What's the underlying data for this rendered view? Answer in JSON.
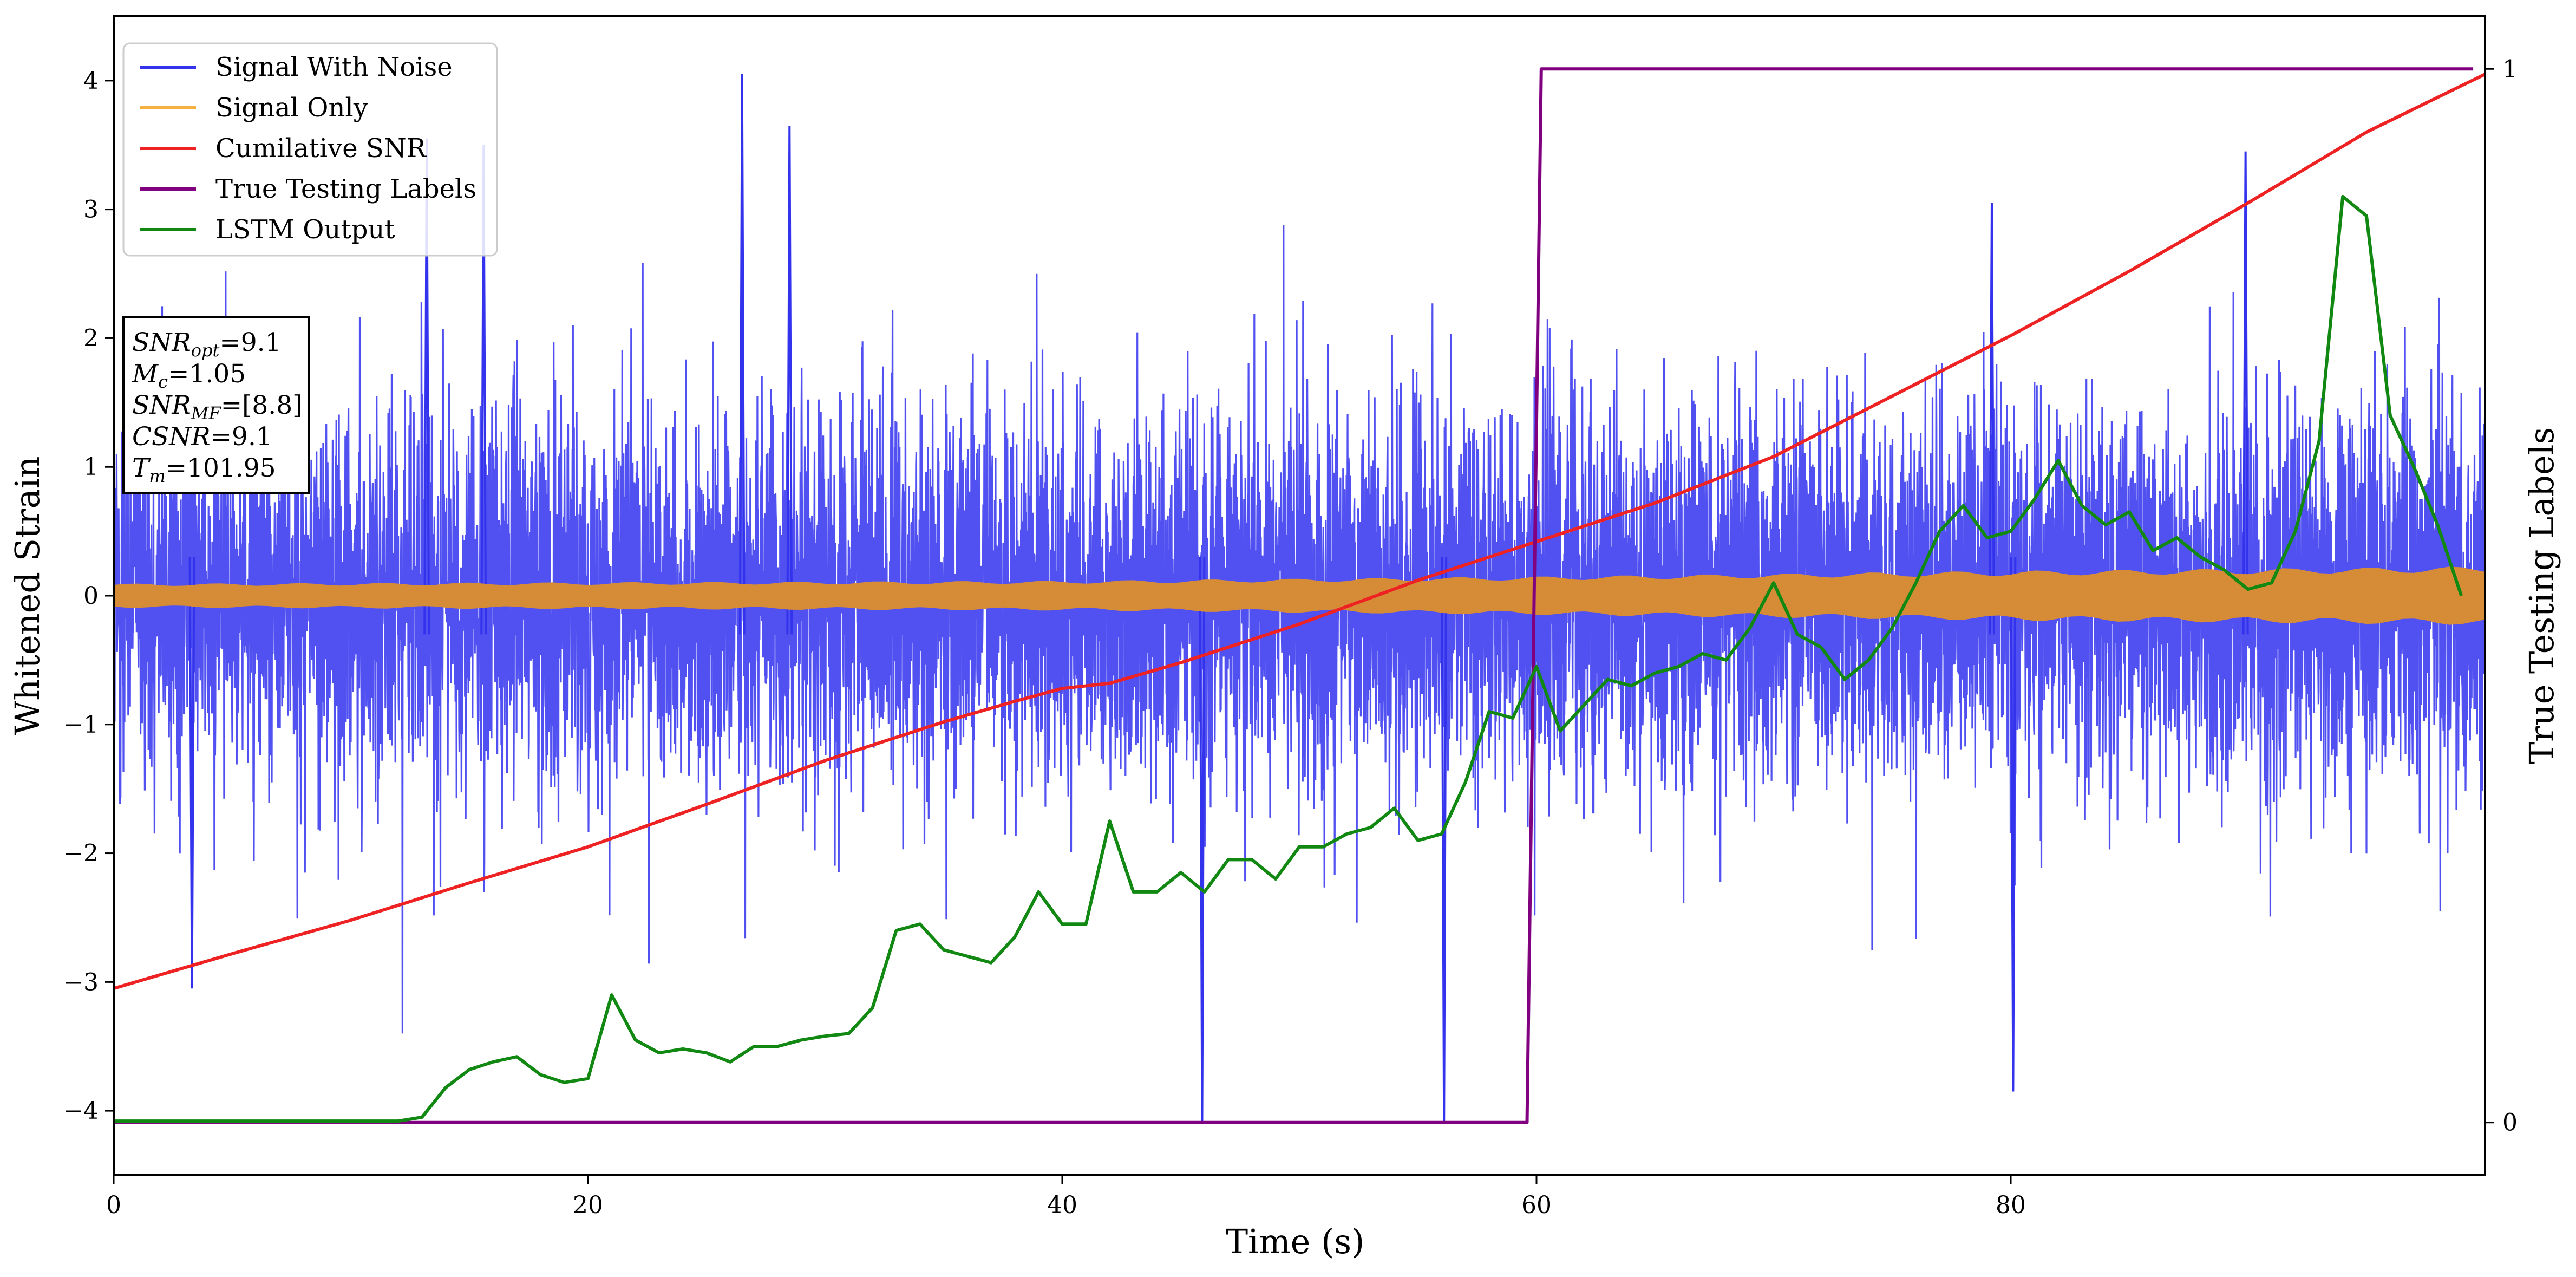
{
  "chart_data": {
    "type": "line",
    "xlabel": "Time (s)",
    "ylabel": "Whitened Strain",
    "y2label": "True Testing Labels",
    "xlim": [
      0,
      100
    ],
    "ylim": [
      -4.5,
      4.5
    ],
    "y2lim": [
      -0.05,
      1.05
    ],
    "xticks": [
      0,
      20,
      40,
      60,
      80
    ],
    "yticks": [
      -4,
      -3,
      -2,
      -1,
      0,
      1,
      2,
      3,
      4
    ],
    "y2ticks": [
      0,
      1
    ],
    "grid": false,
    "legend": {
      "placement": "top-left",
      "entries": [
        {
          "name": "Signal With Noise",
          "color": "#3333ee"
        },
        {
          "name": "Signal Only",
          "color": "#f5b041"
        },
        {
          "name": "Cumilative SNR",
          "color": "#ee2222"
        },
        {
          "name": "True Testing Labels",
          "color": "#800080"
        },
        {
          "name": "LSTM Output",
          "color": "#118811"
        }
      ]
    },
    "annotation": {
      "placement": "left-middle",
      "lines": [
        {
          "base": "SNR",
          "sub": "opt",
          "value": "=9.1"
        },
        {
          "base": "M",
          "sub": "c",
          "value": "=1.05"
        },
        {
          "base": "SNR",
          "sub": "MF",
          "value": "=[8.8]"
        },
        {
          "base": "CSNR",
          "sub": "",
          "value": "=9.1"
        },
        {
          "base": "T",
          "sub": "m",
          "value": "=101.95"
        }
      ]
    },
    "series": [
      {
        "name": "Signal With Noise",
        "axis": "left",
        "color": "#3333ee",
        "style": "dense noise band",
        "typical_range": [
          -1.6,
          1.6
        ],
        "peaks": [
          {
            "x": 3.3,
            "y": -3.05
          },
          {
            "x": 13.2,
            "y": 3.55
          },
          {
            "x": 15.6,
            "y": 3.5
          },
          {
            "x": 26.5,
            "y": 4.05
          },
          {
            "x": 28.5,
            "y": 3.65
          },
          {
            "x": 45.9,
            "y": -4.1
          },
          {
            "x": 56.1,
            "y": -4.1
          },
          {
            "x": 79.2,
            "y": 3.05
          },
          {
            "x": 80.1,
            "y": -3.85
          },
          {
            "x": 89.9,
            "y": 3.45
          }
        ]
      },
      {
        "name": "Signal Only",
        "axis": "left",
        "color": "#d68c36",
        "style": "narrow band",
        "envelope": {
          "x": [
            0,
            20,
            40,
            60,
            80,
            100
          ],
          "amplitude": [
            0.08,
            0.09,
            0.1,
            0.13,
            0.17,
            0.2
          ]
        }
      },
      {
        "name": "Cumilative SNR",
        "axis": "left",
        "color": "#ee2222",
        "x": [
          0,
          5,
          10,
          15,
          20,
          25,
          30,
          35,
          38,
          40,
          42,
          45,
          50,
          55,
          60,
          65,
          70,
          75,
          80,
          85,
          90,
          95,
          100
        ],
        "y": [
          -3.05,
          -2.78,
          -2.52,
          -2.23,
          -1.95,
          -1.62,
          -1.28,
          -0.98,
          -0.82,
          -0.72,
          -0.68,
          -0.52,
          -0.22,
          0.12,
          0.42,
          0.72,
          1.08,
          1.55,
          2.02,
          2.52,
          3.05,
          3.6,
          4.05
        ]
      },
      {
        "name": "True Testing Labels",
        "axis": "right",
        "color": "#800080",
        "x": [
          0,
          59.6,
          60.2,
          99.5
        ],
        "y": [
          0,
          0,
          1,
          1
        ]
      },
      {
        "name": "LSTM Output",
        "axis": "left",
        "color": "#118811",
        "x": [
          0,
          12,
          13,
          14,
          15,
          16,
          17,
          18,
          19,
          20,
          21,
          22,
          23,
          24,
          25,
          26,
          27,
          28,
          29,
          30,
          31,
          32,
          33,
          34,
          35,
          36,
          37,
          38,
          39,
          40,
          41,
          42,
          43,
          44,
          45,
          46,
          47,
          48,
          49,
          50,
          51,
          52,
          53,
          54,
          55,
          56,
          57,
          58,
          59,
          60,
          61,
          62,
          63,
          64,
          65,
          66,
          67,
          68,
          69,
          70,
          71,
          72,
          73,
          74,
          75,
          76,
          77,
          78,
          79,
          80,
          81,
          82,
          83,
          84,
          85,
          86,
          87,
          88,
          89,
          90,
          91,
          92,
          93,
          94,
          95,
          96,
          97,
          98,
          99
        ],
        "y": [
          -4.08,
          -4.08,
          -4.05,
          -3.82,
          -3.68,
          -3.62,
          -3.58,
          -3.72,
          -3.78,
          -3.75,
          -3.1,
          -3.45,
          -3.55,
          -3.52,
          -3.55,
          -3.62,
          -3.5,
          -3.5,
          -3.45,
          -3.42,
          -3.4,
          -3.2,
          -2.6,
          -2.55,
          -2.75,
          -2.8,
          -2.85,
          -2.65,
          -2.3,
          -2.55,
          -2.55,
          -1.75,
          -2.3,
          -2.3,
          -2.15,
          -2.3,
          -2.05,
          -2.05,
          -2.2,
          -1.95,
          -1.95,
          -1.85,
          -1.8,
          -1.65,
          -1.9,
          -1.85,
          -1.45,
          -0.9,
          -0.95,
          -0.55,
          -1.05,
          -0.85,
          -0.65,
          -0.7,
          -0.6,
          -0.55,
          -0.45,
          -0.5,
          -0.25,
          0.1,
          -0.3,
          -0.4,
          -0.65,
          -0.5,
          -0.25,
          0.1,
          0.5,
          0.7,
          0.45,
          0.5,
          0.75,
          1.05,
          0.7,
          0.55,
          0.65,
          0.35,
          0.45,
          0.3,
          0.2,
          0.05,
          0.1,
          0.5,
          1.2,
          3.1,
          2.95,
          1.4,
          1.0,
          0.55,
          0.0
        ]
      }
    ]
  }
}
